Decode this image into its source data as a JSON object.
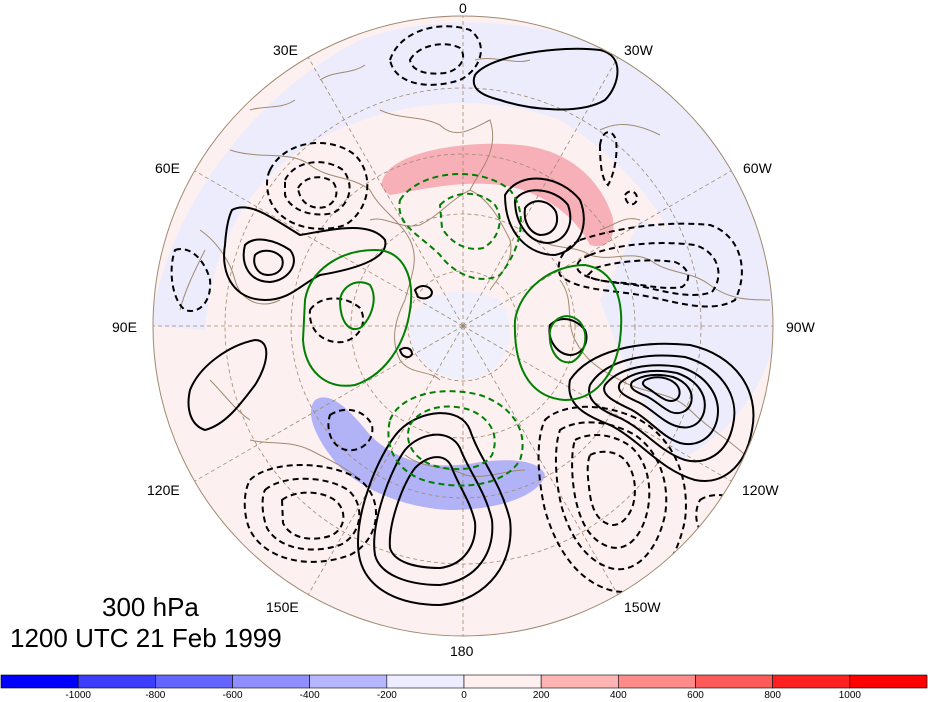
{
  "title": {
    "level": "300 hPa",
    "time": "1200 UTC 21 Feb 1999"
  },
  "longitude_labels": {
    "top": "0",
    "deg30w": "30W",
    "deg60w": "60W",
    "deg90w": "90W",
    "deg120w": "120W",
    "deg150w": "150W",
    "bottom": "180",
    "deg150e": "150E",
    "deg120e": "120E",
    "deg90e": "90E",
    "deg60e": "60E",
    "deg30e": "30E"
  },
  "colorbar": {
    "ticks": [
      "-1000",
      "-800",
      "-600",
      "-400",
      "-200",
      "0",
      "200",
      "400",
      "600",
      "800",
      "1000"
    ],
    "colors": [
      "#0000ff",
      "#3d3dff",
      "#6464ff",
      "#8f8fff",
      "#b6b6ff",
      "#ededff",
      "#fff0f0",
      "#ffb4b4",
      "#ff8a8a",
      "#ff5a5a",
      "#ff2020",
      "#ff0000"
    ]
  },
  "colors": {
    "positive_contour": "#000000",
    "negative_contour": "#000000",
    "green_contour": "#008000",
    "coastline": "#a08a70",
    "gridline": "#a08a70",
    "positive_fill": "#f5a0a8",
    "negative_fill": "#a8a8f5"
  }
}
